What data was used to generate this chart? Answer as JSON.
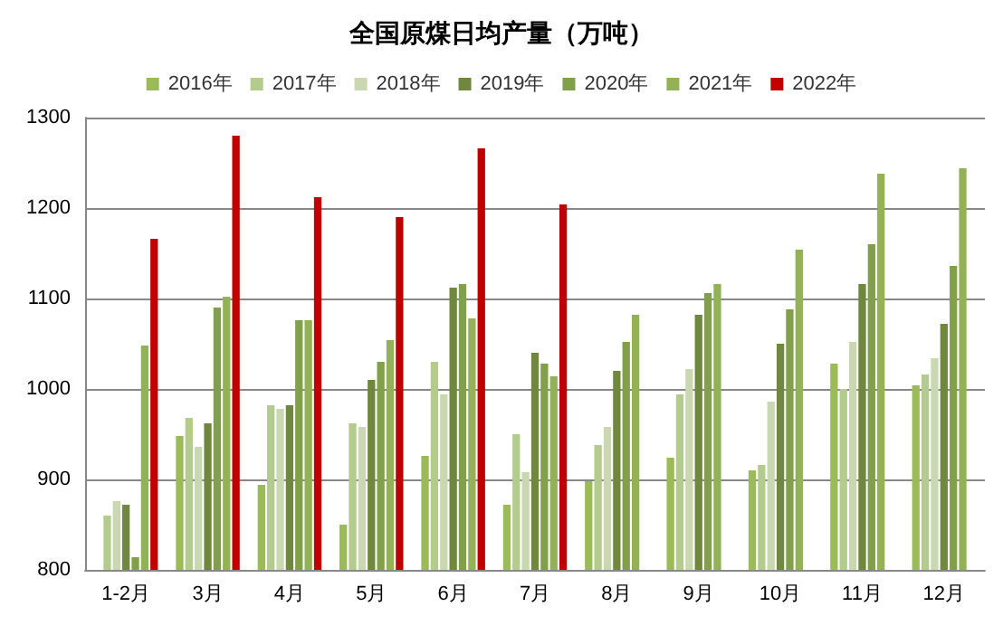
{
  "chart_data": {
    "type": "bar",
    "title": "全国原煤日均产量（万吨）",
    "categories": [
      "1-2月",
      "3月",
      "4月",
      "5月",
      "6月",
      "7月",
      "8月",
      "9月",
      "10月",
      "11月",
      "12月"
    ],
    "series": [
      {
        "name": "2016年",
        "color": "#9bbb59",
        "values": [
          null,
          948,
          894,
          850,
          926,
          872,
          898,
          924,
          910,
          1028,
          1004
        ]
      },
      {
        "name": "2017年",
        "color": "#b3cb8c",
        "values": [
          860,
          968,
          982,
          962,
          1030,
          950,
          938,
          994,
          916,
          1000,
          1016
        ]
      },
      {
        "name": "2018年",
        "color": "#c9d8b1",
        "values": [
          876,
          936,
          978,
          958,
          994,
          908,
          958,
          1022,
          986,
          1052,
          1034
        ]
      },
      {
        "name": "2019年",
        "color": "#70883e",
        "values": [
          872,
          962,
          982,
          1010,
          1112,
          1040,
          1020,
          1082,
          1050,
          1116,
          1072
        ]
      },
      {
        "name": "2020年",
        "color": "#82a04c",
        "values": [
          814,
          1090,
          1076,
          1030,
          1116,
          1028,
          1052,
          1106,
          1088,
          1160,
          1136
        ]
      },
      {
        "name": "2021年",
        "color": "#93b257",
        "values": [
          1048,
          1102,
          1076,
          1054,
          1078,
          1014,
          1082,
          1116,
          1154,
          1238,
          1244
        ]
      },
      {
        "name": "2022年",
        "color": "#c00000",
        "values": [
          1166,
          1280,
          1212,
          1190,
          1266,
          1204,
          null,
          null,
          null,
          null,
          null
        ]
      }
    ],
    "ylim": [
      800,
      1300
    ],
    "yticks": [
      800,
      900,
      1000,
      1100,
      1200,
      1300
    ],
    "grid": "y",
    "legend": "top"
  }
}
